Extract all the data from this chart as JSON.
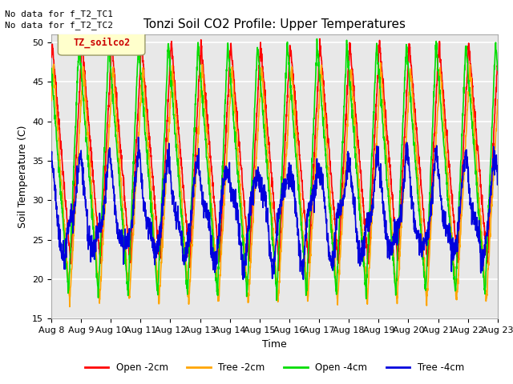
{
  "title": "Tonzi Soil CO2 Profile: Upper Temperatures",
  "xlabel": "Time",
  "ylabel": "Soil Temperature (C)",
  "ylim": [
    15,
    51
  ],
  "yticks": [
    15,
    20,
    25,
    30,
    35,
    40,
    45,
    50
  ],
  "plot_bg_color": "#e8e8e8",
  "n_days": 15,
  "start_day": 8,
  "end_day": 23,
  "annotation_text1": "No data for f_T2_TC1",
  "annotation_text2": "No data for f_T2_TC2",
  "legend_box_text": "TZ_soilco2",
  "colors": {
    "open_2cm": "#ff0000",
    "tree_2cm": "#ffa500",
    "open_4cm": "#00dd00",
    "tree_4cm": "#0000dd"
  },
  "legend_labels": [
    "Open -2cm",
    "Tree -2cm",
    "Open -4cm",
    "Tree -4cm"
  ],
  "points_per_day": 144
}
